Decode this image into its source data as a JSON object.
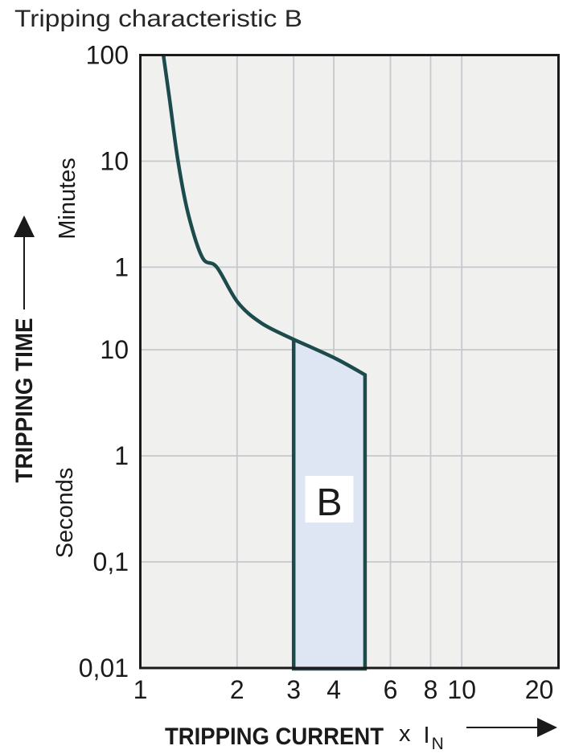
{
  "title": "Tripping characteristic B",
  "labels": {
    "y_axis_title": "TRIPPING TIME",
    "y_unit_top": "Minutes",
    "y_unit_bottom": "Seconds",
    "x_axis_title": "TRIPPING CURRENT",
    "multiplier_prefix": "x",
    "multiplier_symbol": "I",
    "multiplier_subscript": "N",
    "region_label": "B"
  },
  "colors": {
    "curve": "#1d4b4c",
    "region_fill": "#dee6f4",
    "plot_background": "#f0f0ef",
    "gridline": "#c5c9cd",
    "frame": "#1a1a1a",
    "text": "#1a1a1a"
  },
  "chart_data": {
    "type": "line",
    "title": "Tripping characteristic B",
    "x_axis": {
      "label": "TRIPPING CURRENT",
      "unit": "x IN",
      "scale": "log",
      "min": 1,
      "max": 20,
      "ticks": [
        1,
        2,
        3,
        4,
        6,
        8,
        10,
        20
      ],
      "tick_labels": [
        "1",
        "2",
        "3",
        "4",
        "6",
        "8",
        "10",
        "20"
      ]
    },
    "y_axis": {
      "label": "TRIPPING TIME",
      "scale": "log",
      "min_seconds": 0.01,
      "max_seconds": 6000,
      "unit_top": "Minutes",
      "unit_bottom": "Seconds",
      "ticks": [
        {
          "label": "100",
          "seconds": 6000,
          "unit": "minutes"
        },
        {
          "label": "10",
          "seconds": 600,
          "unit": "minutes"
        },
        {
          "label": "1",
          "seconds": 60,
          "unit": "minutes"
        },
        {
          "label": "10",
          "seconds": 10,
          "unit": "seconds"
        },
        {
          "label": "1",
          "seconds": 1,
          "unit": "seconds"
        },
        {
          "label": "0,1",
          "seconds": 0.1,
          "unit": "seconds"
        },
        {
          "label": "0,01",
          "seconds": 0.01,
          "unit": "seconds"
        }
      ]
    },
    "grid": {
      "x_values": [
        2,
        3,
        4,
        6,
        8,
        10
      ],
      "y_values_seconds": [
        600,
        60,
        10,
        1,
        0.1
      ]
    },
    "series": [
      {
        "name": "tripping-limit-curve",
        "points_x_t_seconds": [
          [
            1.18,
            6000
          ],
          [
            1.23,
            2440
          ],
          [
            1.31,
            600
          ],
          [
            1.41,
            190
          ],
          [
            1.56,
            74
          ],
          [
            1.73,
            60
          ],
          [
            2.01,
            28
          ],
          [
            2.39,
            17.7
          ],
          [
            3.0,
            12.5
          ]
        ]
      }
    ],
    "region": {
      "label": "B",
      "x_range": [
        3,
        5
      ],
      "bottom_seconds": 0.01,
      "top_edge_x_t_seconds": [
        [
          3.0,
          12.5
        ],
        [
          4.04,
          8.3
        ],
        [
          5.0,
          5.8
        ]
      ]
    }
  }
}
